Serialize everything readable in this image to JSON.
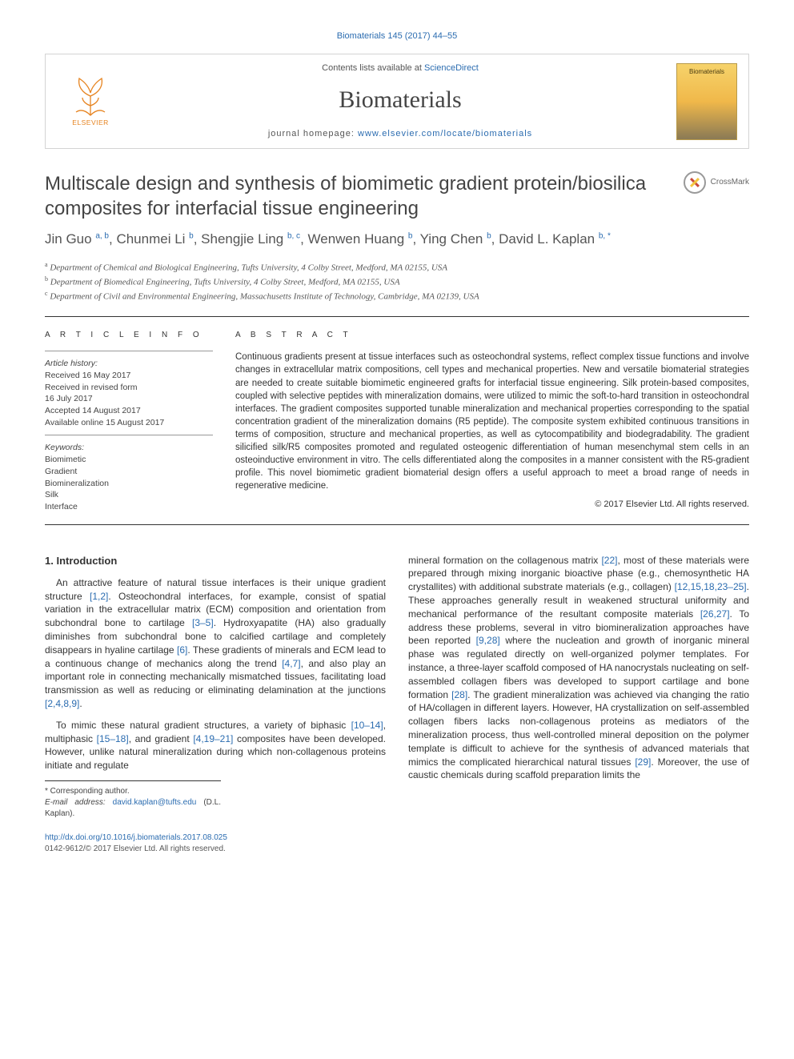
{
  "citation": "Biomaterials 145 (2017) 44–55",
  "masthead": {
    "contents_label": "Contents lists available at ",
    "contents_link": "ScienceDirect",
    "journal": "Biomaterials",
    "home_label": "journal homepage: ",
    "home_link": "www.elsevier.com/locate/biomaterials",
    "publisher": "ELSEVIER",
    "cover_text": "Biomaterials"
  },
  "title": "Multiscale design and synthesis of biomimetic gradient protein/biosilica composites for interfacial tissue engineering",
  "crossmark_label": "CrossMark",
  "authors_html": "Jin Guo <sup>a, b</sup>, Chunmei Li <sup>b</sup>, Shengjie Ling <sup>b, c</sup>, Wenwen Huang <sup>b</sup>, Ying Chen <sup>b</sup>, David L. Kaplan <sup>b, *</sup>",
  "affiliations": [
    "a Department of Chemical and Biological Engineering, Tufts University, 4 Colby Street, Medford, MA 02155, USA",
    "b Department of Biomedical Engineering, Tufts University, 4 Colby Street, Medford, MA 02155, USA",
    "c Department of Civil and Environmental Engineering, Massachusetts Institute of Technology, Cambridge, MA 02139, USA"
  ],
  "article_info": {
    "heading": "A R T I C L E  I N F O",
    "history_label": "Article history:",
    "history": [
      "Received 16 May 2017",
      "Received in revised form",
      "16 July 2017",
      "Accepted 14 August 2017",
      "Available online 15 August 2017"
    ],
    "keywords_label": "Keywords:",
    "keywords": [
      "Biomimetic",
      "Gradient",
      "Biomineralization",
      "Silk",
      "Interface"
    ]
  },
  "abstract": {
    "heading": "A B S T R A C T",
    "text": "Continuous gradients present at tissue interfaces such as osteochondral systems, reflect complex tissue functions and involve changes in extracellular matrix compositions, cell types and mechanical properties. New and versatile biomaterial strategies are needed to create suitable biomimetic engineered grafts for interfacial tissue engineering. Silk protein-based composites, coupled with selective peptides with mineralization domains, were utilized to mimic the soft-to-hard transition in osteochondral interfaces. The gradient composites supported tunable mineralization and mechanical properties corresponding to the spatial concentration gradient of the mineralization domains (R5 peptide). The composite system exhibited continuous transitions in terms of composition, structure and mechanical properties, as well as cytocompatibility and biodegradability. The gradient silicified silk/R5 composites promoted and regulated osteogenic differentiation of human mesenchymal stem cells in an osteoinductive environment in vitro. The cells differentiated along the composites in a manner consistent with the R5-gradient profile. This novel biomimetic gradient biomaterial design offers a useful approach to meet a broad range of needs in regenerative medicine.",
    "copyright": "© 2017 Elsevier Ltd. All rights reserved."
  },
  "intro": {
    "heading": "1. Introduction",
    "p1": "An attractive feature of natural tissue interfaces is their unique gradient structure [1,2]. Osteochondral interfaces, for example, consist of spatial variation in the extracellular matrix (ECM) composition and orientation from subchondral bone to cartilage [3–5]. Hydroxyapatite (HA) also gradually diminishes from subchondral bone to calcified cartilage and completely disappears in hyaline cartilage [6]. These gradients of minerals and ECM lead to a continuous change of mechanics along the trend [4,7], and also play an important role in connecting mechanically mismatched tissues, facilitating load transmission as well as reducing or eliminating delamination at the junctions [2,4,8,9].",
    "p2": "To mimic these natural gradient structures, a variety of biphasic [10–14], multiphasic [15–18], and gradient [4,19–21] composites have been developed. However, unlike natural mineralization during which non-collagenous proteins initiate and regulate",
    "p3": "mineral formation on the collagenous matrix [22], most of these materials were prepared through mixing inorganic bioactive phase (e.g., chemosynthetic HA crystallites) with additional substrate materials (e.g., collagen) [12,15,18,23–25]. These approaches generally result in weakened structural uniformity and mechanical performance of the resultant composite materials [26,27]. To address these problems, several in vitro biomineralization approaches have been reported [9,28] where the nucleation and growth of inorganic mineral phase was regulated directly on well-organized polymer templates. For instance, a three-layer scaffold composed of HA nanocrystals nucleating on self-assembled collagen fibers was developed to support cartilage and bone formation [28]. The gradient mineralization was achieved via changing the ratio of HA/collagen in different layers. However, HA crystallization on self-assembled collagen fibers lacks non-collagenous proteins as mediators of the mineralization process, thus well-controlled mineral deposition on the polymer template is difficult to achieve for the synthesis of advanced materials that mimics the complicated hierarchical natural tissues [29]. Moreover, the use of caustic chemicals during scaffold preparation limits the",
    "refs": {
      "r1": "[1,2]",
      "r2": "[3–5]",
      "r3": "[6]",
      "r4": "[4,7]",
      "r5": "[2,4,8,9]",
      "r6": "[10–14]",
      "r7": "[15–18]",
      "r8": "[4,19–21]",
      "r9": "[22]",
      "r10": "[12,15,18,23–25]",
      "r11": "[26,27]",
      "r12": "[9,28]",
      "r13": "[28]",
      "r14": "[29]"
    }
  },
  "footnote": {
    "corr_label": "* Corresponding author.",
    "email_label": "E-mail address: ",
    "email": "david.kaplan@tufts.edu",
    "email_owner": " (D.L. Kaplan)."
  },
  "footer": {
    "doi": "http://dx.doi.org/10.1016/j.biomaterials.2017.08.025",
    "issn": "0142-9612/© 2017 Elsevier Ltd. All rights reserved."
  },
  "colors": {
    "link": "#2b6cb0",
    "text": "#333333",
    "rule": "#333333",
    "elsevier": "#e6831f"
  }
}
